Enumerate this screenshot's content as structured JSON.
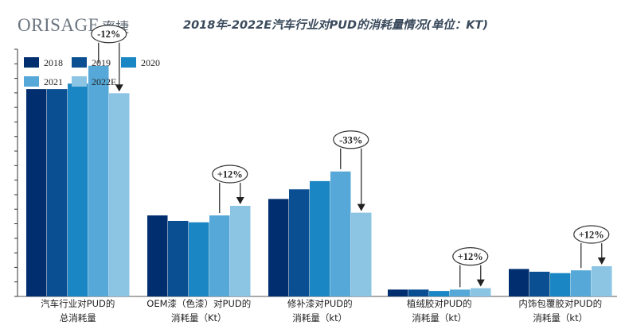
{
  "logo": {
    "latin": "ORISAGE",
    "cn": "率捷"
  },
  "chart_data": {
    "type": "bar",
    "title": "2018年-2022E汽车行业对PUD的消耗量情况(单位：KT)",
    "categories": [
      [
        "汽车行业对PUD的",
        "总消耗量"
      ],
      [
        "OEM漆（色漆）对PUD的",
        "消耗量（Kt）"
      ],
      [
        "修补漆对PUD的",
        "消耗量（kt）"
      ],
      [
        "植绒胶对PUD的",
        "消耗量（kt）"
      ],
      [
        "内饰包覆胶对PUD的",
        "消耗量（kt）"
      ]
    ],
    "series": [
      {
        "name": "2018",
        "color": "#002e6e",
        "values": [
          151,
          59,
          71,
          5,
          20
        ]
      },
      {
        "name": "2019",
        "color": "#0a4f92",
        "values": [
          151,
          55,
          78,
          5,
          18
        ]
      },
      {
        "name": "2020",
        "color": "#1a87c4",
        "values": [
          155,
          54,
          84,
          4,
          17
        ]
      },
      {
        "name": "2021",
        "color": "#55a8d8",
        "values": [
          168,
          59,
          91,
          5,
          19
        ]
      },
      {
        "name": "2022E",
        "color": "#8cc4e3",
        "values": [
          148,
          66,
          61,
          6,
          22
        ]
      }
    ],
    "ylim": [
      0,
      180
    ],
    "grid": false,
    "legend_position": "top-left",
    "annotations": [
      {
        "category": 0,
        "label": "-12%"
      },
      {
        "category": 1,
        "label": "+12%"
      },
      {
        "category": 2,
        "label": "-33%"
      },
      {
        "category": 3,
        "label": "+12%"
      },
      {
        "category": 4,
        "label": "+12%"
      }
    ]
  }
}
